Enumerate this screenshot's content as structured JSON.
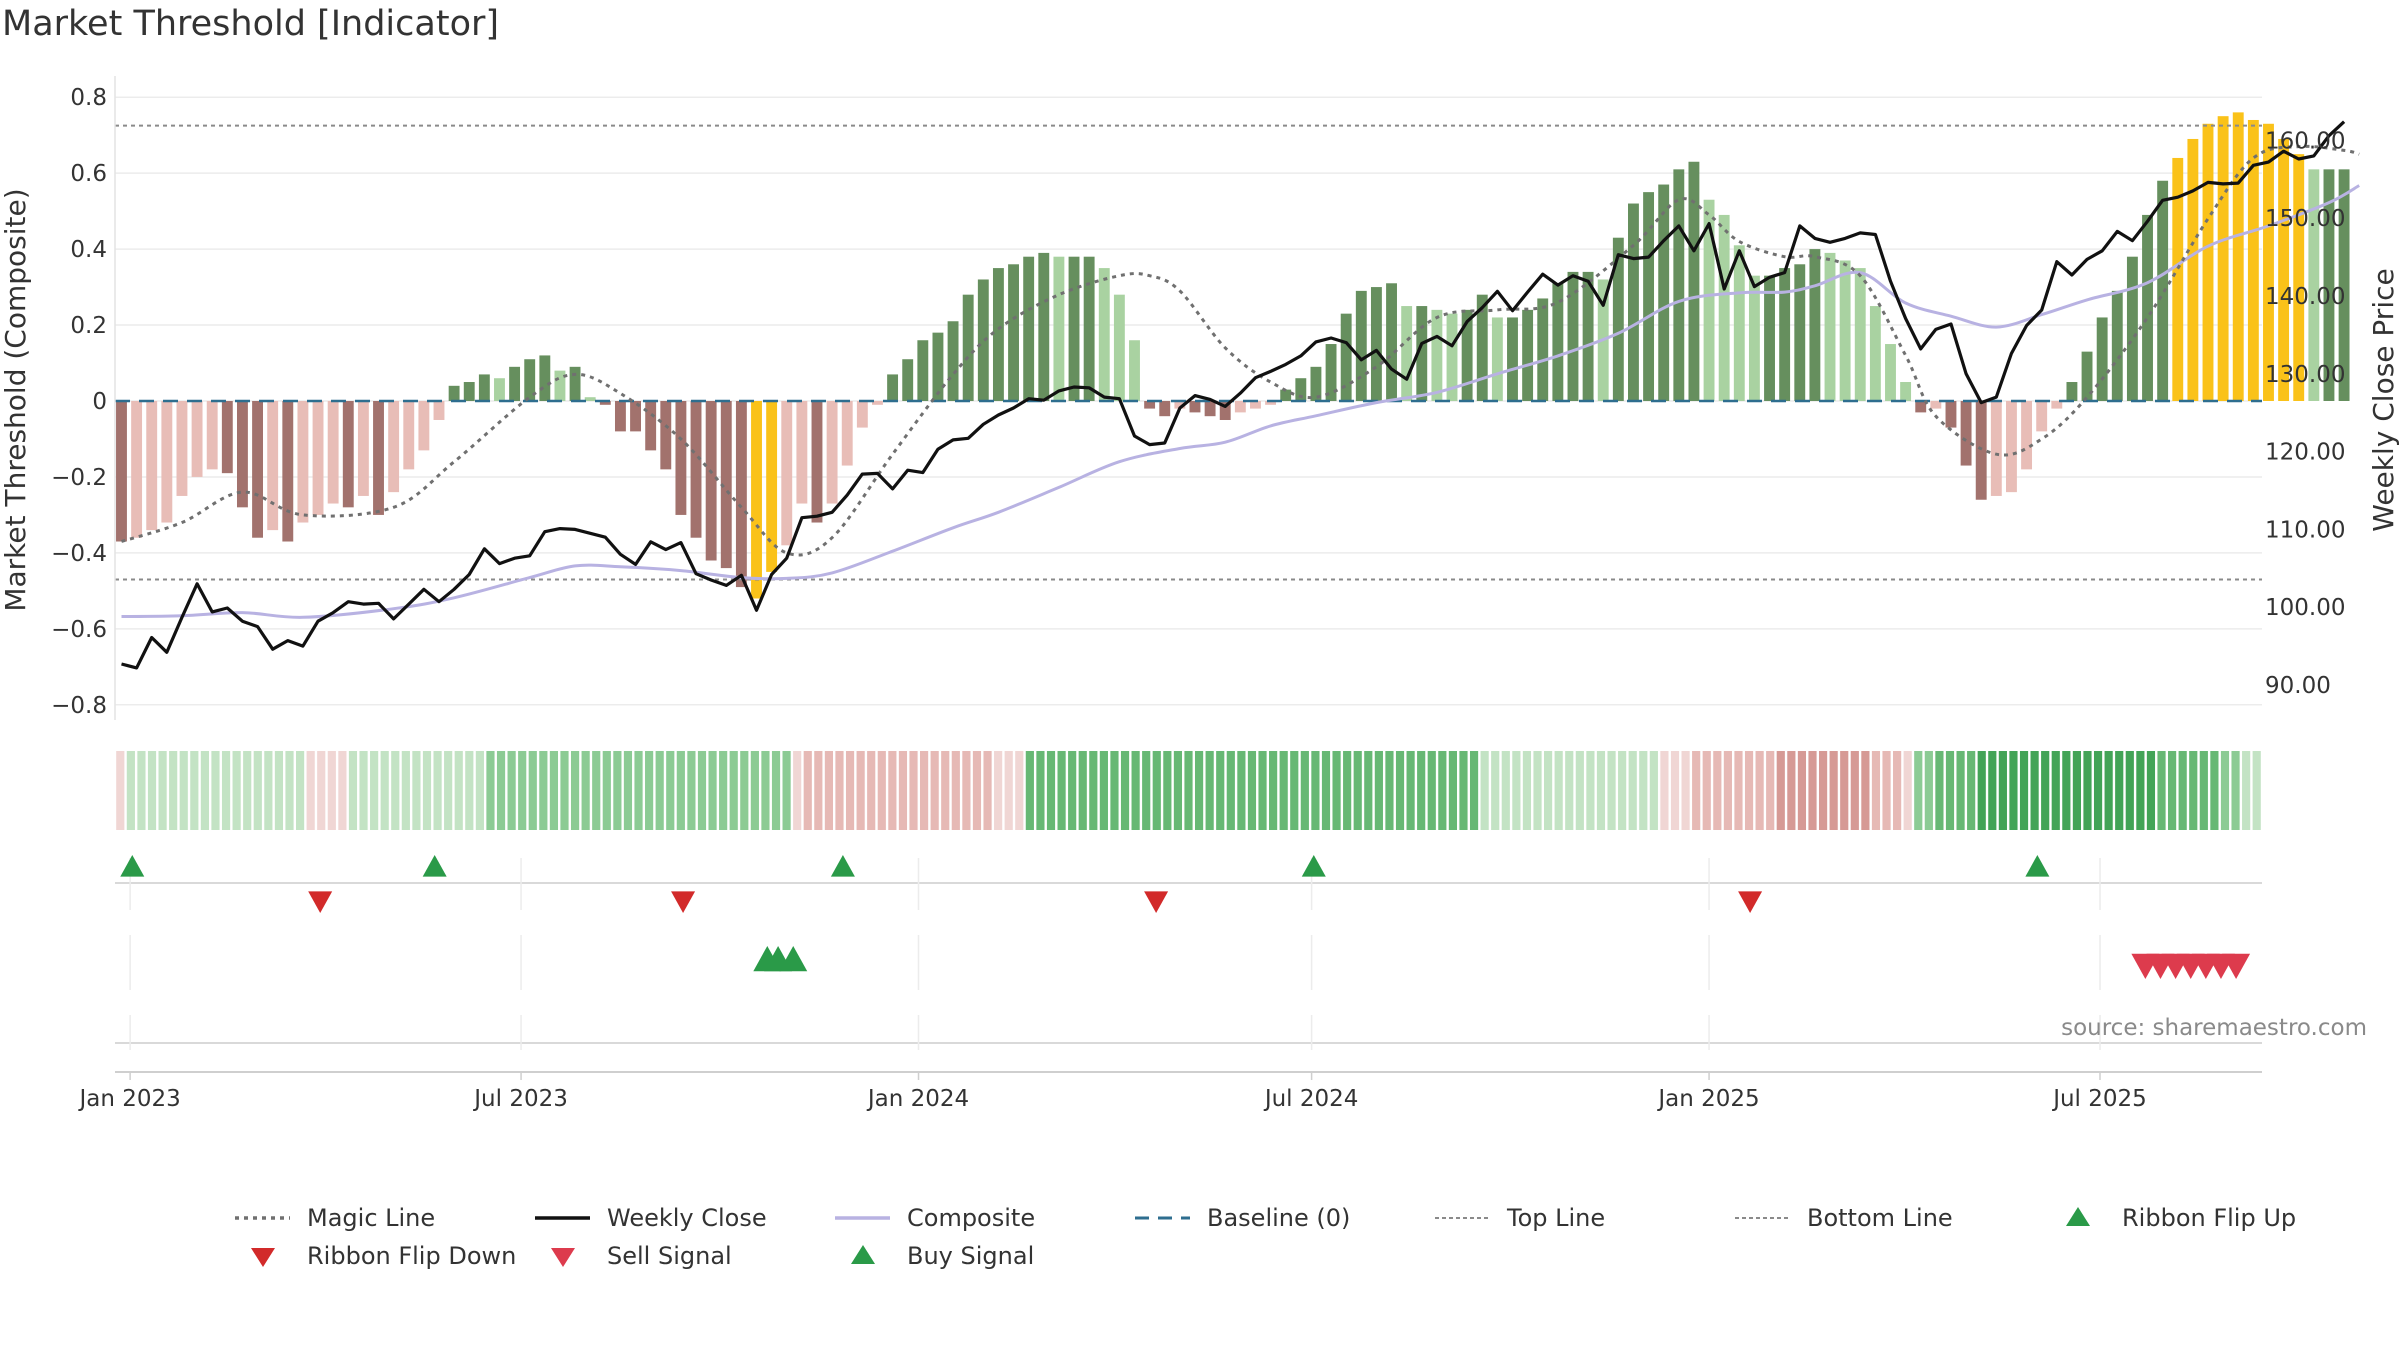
{
  "title": "Market Threshold [Indicator]",
  "source": "source: sharemaestro.com",
  "colors": {
    "pos_dark": "#668f5e",
    "pos_light": "#a9d2a1",
    "neg_dark": "#a2726d",
    "neg_light": "#e8bdb7",
    "extreme": "#fac219",
    "close": "#111111",
    "composite": "#b8b2e2",
    "magic": "#707070",
    "baseline": "#2e6e8f",
    "threshold": "#8a8a8a",
    "flip_up": "#2a9a48",
    "flip_down": "#d22a2a",
    "sell": "#dd3b4d",
    "buy": "#2a9a48"
  },
  "chart_data": {
    "type": "bar",
    "title": "Market Threshold [Indicator]",
    "ylabel_left": "Market Threshold (Composite)",
    "ylabel_right": "Weekly Close Price",
    "ylim_left": [
      -0.84,
      0.84
    ],
    "ylim_right": [
      85.5,
      167.5
    ],
    "grid": true,
    "left_ticks": [
      {
        "v": 0.8,
        "label": "0.8"
      },
      {
        "v": 0.6,
        "label": "0.6"
      },
      {
        "v": 0.4,
        "label": "0.4"
      },
      {
        "v": 0.2,
        "label": "0.2"
      },
      {
        "v": 0,
        "label": "0"
      },
      {
        "v": -0.2,
        "label": "−0.2"
      },
      {
        "v": -0.4,
        "label": "−0.4"
      },
      {
        "v": -0.6,
        "label": "−0.6"
      },
      {
        "v": -0.8,
        "label": "−0.8"
      }
    ],
    "right_ticks": [
      {
        "v": 160,
        "label": "160.00"
      },
      {
        "v": 150,
        "label": "150.00"
      },
      {
        "v": 140,
        "label": "140.00"
      },
      {
        "v": 130,
        "label": "130.00"
      },
      {
        "v": 120,
        "label": "120.00"
      },
      {
        "v": 110,
        "label": "110.00"
      },
      {
        "v": 100,
        "label": "100.00"
      },
      {
        "v": 90,
        "label": "90.00"
      }
    ],
    "x_ticks": [
      {
        "date": "2023-01-01",
        "label": "Jan 2023"
      },
      {
        "date": "2023-07-01",
        "label": "Jul 2023"
      },
      {
        "date": "2024-01-01",
        "label": "Jan 2024"
      },
      {
        "date": "2024-07-01",
        "label": "Jul 2024"
      },
      {
        "date": "2025-01-01",
        "label": "Jan 2025"
      },
      {
        "date": "2025-07-01",
        "label": "Jul 2025"
      }
    ],
    "x_range": [
      "2022-12-25",
      "2025-09-14"
    ],
    "first_week": "2022-12-28",
    "top_line": 0.725,
    "bottom_line": -0.47,
    "baseline": 0,
    "bar_values": [
      -0.37,
      -0.36,
      -0.34,
      -0.32,
      -0.25,
      -0.2,
      -0.18,
      -0.19,
      -0.28,
      -0.36,
      -0.34,
      -0.37,
      -0.32,
      -0.3,
      -0.27,
      -0.28,
      -0.25,
      -0.3,
      -0.24,
      -0.18,
      -0.13,
      -0.05,
      0.04,
      0.05,
      0.07,
      0.06,
      0.09,
      0.11,
      0.12,
      0.08,
      0.09,
      0.01,
      -0.01,
      -0.08,
      -0.08,
      -0.13,
      -0.18,
      -0.3,
      -0.36,
      -0.42,
      -0.44,
      -0.49,
      -0.52,
      -0.45,
      -0.38,
      -0.27,
      -0.32,
      -0.27,
      -0.17,
      -0.07,
      -0.01,
      0.07,
      0.11,
      0.16,
      0.18,
      0.21,
      0.28,
      0.32,
      0.35,
      0.36,
      0.38,
      0.39,
      0.38,
      0.38,
      0.38,
      0.35,
      0.28,
      0.16,
      -0.02,
      -0.04,
      -0.02,
      -0.03,
      -0.04,
      -0.05,
      -0.03,
      -0.02,
      -0.01,
      0.03,
      0.06,
      0.09,
      0.15,
      0.23,
      0.29,
      0.3,
      0.31,
      0.25,
      0.25,
      0.24,
      0.23,
      0.24,
      0.28,
      0.22,
      0.22,
      0.24,
      0.27,
      0.31,
      0.34,
      0.34,
      0.32,
      0.43,
      0.52,
      0.55,
      0.57,
      0.61,
      0.63,
      0.53,
      0.49,
      0.41,
      0.33,
      0.33,
      0.35,
      0.36,
      0.4,
      0.39,
      0.37,
      0.35,
      0.25,
      0.15,
      0.05,
      -0.03,
      -0.02,
      -0.07,
      -0.17,
      -0.26,
      -0.25,
      -0.24,
      -0.18,
      -0.08,
      -0.02,
      0.05,
      0.13,
      0.22,
      0.29,
      0.38,
      0.49,
      0.58,
      0.64,
      0.69,
      0.73,
      0.75,
      0.76,
      0.74,
      0.73,
      0.69,
      0.65,
      0.61,
      0.61,
      0.61
    ],
    "extreme_bars": [
      42,
      43,
      136,
      137,
      138,
      139,
      140,
      141,
      142,
      143,
      144
    ],
    "magic_line": [
      [
        0,
        -0.37
      ],
      [
        4,
        -0.32
      ],
      [
        8,
        -0.24
      ],
      [
        12,
        -0.3
      ],
      [
        18,
        -0.28
      ],
      [
        22,
        -0.16
      ],
      [
        27,
        0.01
      ],
      [
        30,
        0.07
      ],
      [
        33,
        0.02
      ],
      [
        37,
        -0.1
      ],
      [
        41,
        -0.28
      ],
      [
        44,
        -0.4
      ],
      [
        47,
        -0.36
      ],
      [
        51,
        -0.14
      ],
      [
        55,
        0.07
      ],
      [
        58,
        0.19
      ],
      [
        62,
        0.28
      ],
      [
        66,
        0.33
      ],
      [
        68,
        0.33
      ],
      [
        70,
        0.29
      ],
      [
        73,
        0.14
      ],
      [
        76,
        0.05
      ],
      [
        79,
        0.01
      ],
      [
        83,
        0.09
      ],
      [
        87,
        0.22
      ],
      [
        91,
        0.24
      ],
      [
        95,
        0.26
      ],
      [
        100,
        0.41
      ],
      [
        103,
        0.53
      ],
      [
        105,
        0.49
      ],
      [
        107,
        0.42
      ],
      [
        110,
        0.38
      ],
      [
        112,
        0.38
      ],
      [
        115,
        0.33
      ],
      [
        118,
        0.12
      ],
      [
        120,
        -0.04
      ],
      [
        124,
        -0.14
      ],
      [
        127,
        -0.1
      ],
      [
        130,
        0.01
      ],
      [
        134,
        0.22
      ],
      [
        138,
        0.48
      ],
      [
        141,
        0.64
      ],
      [
        144,
        0.67
      ],
      [
        147,
        0.66
      ],
      [
        148,
        0.65
      ]
    ],
    "composite_line": [
      [
        0,
        98.8
      ],
      [
        4,
        98.9
      ],
      [
        8,
        99.3
      ],
      [
        12,
        98.7
      ],
      [
        18,
        99.8
      ],
      [
        22,
        101.2
      ],
      [
        27,
        103.8
      ],
      [
        30,
        105.3
      ],
      [
        33,
        105.2
      ],
      [
        37,
        104.7
      ],
      [
        41,
        103.8
      ],
      [
        44,
        103.7
      ],
      [
        47,
        104.4
      ],
      [
        51,
        107.2
      ],
      [
        55,
        110.2
      ],
      [
        58,
        112.2
      ],
      [
        62,
        115.4
      ],
      [
        66,
        118.7
      ],
      [
        70,
        120.4
      ],
      [
        73,
        121.2
      ],
      [
        76,
        123.3
      ],
      [
        79,
        124.6
      ],
      [
        83,
        126.3
      ],
      [
        87,
        127.6
      ],
      [
        91,
        130.0
      ],
      [
        95,
        132.3
      ],
      [
        99,
        135.2
      ],
      [
        103,
        139.3
      ],
      [
        107,
        140.4
      ],
      [
        110,
        140.5
      ],
      [
        112,
        141.3
      ],
      [
        115,
        143.0
      ],
      [
        118,
        139.1
      ],
      [
        121,
        137.4
      ],
      [
        124,
        136.0
      ],
      [
        127,
        137.6
      ],
      [
        130,
        139.5
      ],
      [
        134,
        141.7
      ],
      [
        138,
        146.4
      ],
      [
        142,
        149.0
      ],
      [
        146,
        152.0
      ],
      [
        148,
        154.2
      ]
    ],
    "close": [
      92.7,
      92.2,
      96.1,
      94.2,
      98.7,
      103.0,
      99.4,
      99.9,
      98.2,
      97.5,
      94.6,
      95.7,
      95.0,
      98.2,
      99.3,
      100.7,
      100.4,
      100.5,
      98.5,
      100.4,
      102.3,
      100.7,
      102.3,
      104.2,
      107.5,
      105.6,
      106.3,
      106.6,
      109.7,
      110.1,
      110.0,
      109.5,
      109.0,
      106.8,
      105.5,
      108.4,
      107.4,
      108.3,
      104.3,
      103.5,
      102.8,
      104.1,
      99.6,
      104.2,
      106.3,
      111.5,
      111.7,
      112.2,
      114.4,
      117.1,
      117.2,
      115.2,
      117.6,
      117.3,
      120.3,
      121.5,
      121.7,
      123.5,
      124.7,
      125.6,
      126.8,
      126.6,
      127.8,
      128.3,
      128.2,
      127.0,
      126.8,
      122.0,
      120.9,
      121.1,
      125.6,
      127.2,
      126.7,
      125.8,
      127.5,
      129.5,
      130.3,
      131.2,
      132.3,
      134.1,
      134.6,
      134.0,
      131.8,
      133.0,
      130.6,
      129.3,
      133.9,
      134.8,
      133.6,
      136.7,
      138.5,
      140.6,
      138.1,
      140.5,
      142.8,
      141.4,
      142.6,
      141.9,
      138.8,
      145.3,
      144.8,
      145.0,
      147.1,
      149.0,
      145.8,
      149.3,
      140.9,
      145.8,
      141.2,
      142.4,
      143.0,
      149.0,
      147.4,
      146.9,
      147.4,
      148.1,
      147.9,
      141.9,
      137.1,
      133.2,
      135.7,
      136.4,
      130.0,
      126.3,
      127.0,
      132.6,
      136.2,
      138.2,
      144.4,
      142.7,
      144.7,
      145.8,
      148.3,
      147.1,
      149.6,
      152.3,
      152.7,
      153.5,
      154.6,
      154.4,
      154.5,
      156.8,
      157.2,
      158.6,
      157.6,
      158.0,
      160.6,
      162.4
    ],
    "ribbon": [
      -1,
      1,
      1,
      1,
      1,
      1,
      1,
      1,
      1,
      1,
      1,
      1,
      1,
      1,
      1,
      1,
      1,
      1,
      -1,
      -1,
      -1,
      -1,
      1,
      1,
      1,
      1,
      1,
      1,
      1,
      1,
      1,
      1,
      1,
      1,
      1,
      2,
      2,
      2,
      2,
      2,
      2,
      2,
      2,
      2,
      2,
      2,
      2,
      2,
      2,
      2,
      2,
      2,
      2,
      2,
      2,
      2,
      2,
      2,
      2,
      2,
      2,
      2,
      2,
      2,
      -1,
      -2,
      -2,
      -2,
      -2,
      -2,
      -2,
      -2,
      -2,
      -2,
      -2,
      -2,
      -2,
      -2,
      -2,
      -2,
      -2,
      -2,
      -2,
      -1,
      -1,
      -1,
      3,
      3,
      3,
      3,
      3,
      3,
      3,
      3,
      3,
      3,
      3,
      3,
      3,
      3,
      3,
      3,
      3,
      3,
      3,
      3,
      3,
      3,
      3,
      3,
      3,
      3,
      3,
      3,
      3,
      3,
      3,
      3,
      3,
      3,
      3,
      3,
      3,
      3,
      3,
      3,
      3,
      3,
      3,
      1,
      1,
      1,
      1,
      1,
      1,
      1,
      1,
      1,
      1,
      1,
      1,
      1,
      1,
      1,
      1,
      1,
      -1,
      -1,
      -1,
      -2,
      -2,
      -2,
      -2,
      -2,
      -2,
      -2,
      -2,
      -3,
      -3,
      -3,
      -3,
      -3,
      -3,
      -3,
      -3,
      -3,
      -2,
      -2,
      -2,
      -1,
      2,
      2,
      3,
      3,
      3,
      3,
      4,
      4,
      4,
      4,
      4,
      4,
      4,
      4,
      4,
      4,
      4,
      4,
      4,
      4,
      4,
      4,
      4,
      3,
      3,
      3,
      3,
      3,
      3,
      2,
      2,
      1,
      1
    ],
    "ribbon_flip_up": [
      "2023-01-02",
      "2023-05-22",
      "2023-11-27",
      "2024-07-02",
      "2025-06-02"
    ],
    "ribbon_flip_down": [
      "2023-03-30",
      "2023-09-14",
      "2024-04-20",
      "2025-01-20"
    ],
    "buy_signal": [
      "2023-10-23",
      "2023-10-28",
      "2023-11-04"
    ],
    "sell_signal": [
      "2025-07-22",
      "2025-07-29",
      "2025-08-05",
      "2025-08-12",
      "2025-08-19",
      "2025-08-26",
      "2025-09-02"
    ]
  },
  "legend": [
    {
      "label": "Magic Line",
      "kind": "dot",
      "color": "#707070"
    },
    {
      "label": "Weekly Close",
      "kind": "solid",
      "color": "#111111"
    },
    {
      "label": "Composite",
      "kind": "solid",
      "color": "#b8b2e2"
    },
    {
      "label": "Baseline (0)",
      "kind": "dash",
      "color": "#2e6e8f"
    },
    {
      "label": "Top Line",
      "kind": "fine",
      "color": "#8a8a8a"
    },
    {
      "label": "Bottom Line",
      "kind": "fine",
      "color": "#8a8a8a"
    },
    {
      "label": "Ribbon Flip Up",
      "kind": "tri-up",
      "color": "#2a9a48"
    },
    {
      "label": "Ribbon Flip Down",
      "kind": "tri-down",
      "color": "#d22a2a"
    },
    {
      "label": "Sell Signal",
      "kind": "tri-down",
      "color": "#dd3b4d"
    },
    {
      "label": "Buy Signal",
      "kind": "tri-up",
      "color": "#2a9a48"
    }
  ]
}
